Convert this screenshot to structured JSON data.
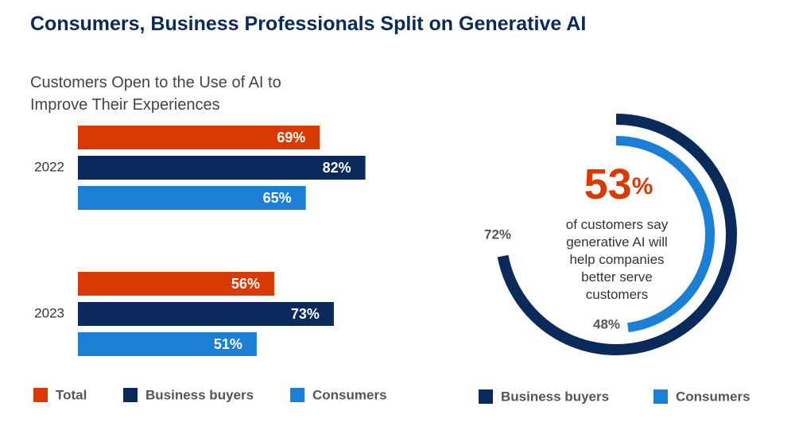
{
  "title": "Consumers, Business Professionals Split on Generative AI",
  "chart_data": [
    {
      "type": "bar",
      "orientation": "horizontal",
      "title": "Customers Open to the Use of AI to Improve Their Experiences",
      "categories": [
        "2022",
        "2023"
      ],
      "series": [
        {
          "name": "Total",
          "color": "#d83a02",
          "values": [
            69,
            56
          ],
          "value_labels": [
            "69%",
            "56%"
          ]
        },
        {
          "name": "Business buyers",
          "color": "#0a2a5c",
          "values": [
            82,
            73
          ],
          "value_labels": [
            "82%",
            "73%"
          ]
        },
        {
          "name": "Consumers",
          "color": "#1b7fd6",
          "values": [
            65,
            51
          ],
          "value_labels": [
            "65%",
            "51%"
          ]
        }
      ],
      "legend": "bottom"
    },
    {
      "type": "radial",
      "highlight": {
        "value": 53,
        "label": "53%",
        "color": "#d83a02"
      },
      "annotation": "of customers say generative AI will help companies better serve customers",
      "series": [
        {
          "name": "Business buyers",
          "color": "#0a2a5c",
          "values": [
            72
          ],
          "value_labels": [
            "72%"
          ]
        },
        {
          "name": "Consumers",
          "color": "#1b7fd6",
          "values": [
            48
          ],
          "value_labels": [
            "48%"
          ]
        }
      ],
      "legend": "bottom"
    }
  ]
}
